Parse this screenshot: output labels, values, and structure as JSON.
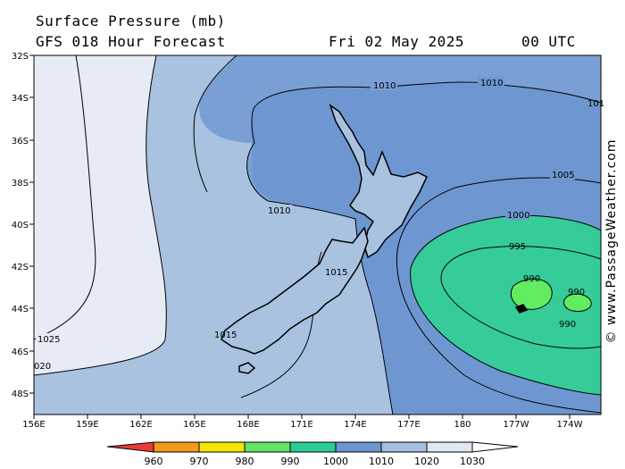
{
  "header": {
    "title": "Surface Pressure (mb)",
    "subtitle": "GFS 018 Hour Forecast",
    "date": "Fri 02 May 2025",
    "time": "00 UTC"
  },
  "credit": "© www.PassageWeather.com",
  "axes": {
    "lat_labels": [
      "32S",
      "34S",
      "36S",
      "38S",
      "40S",
      "42S",
      "44S",
      "46S",
      "48S"
    ],
    "lon_labels": [
      "156E",
      "159E",
      "162E",
      "165E",
      "168E",
      "171E",
      "174E",
      "177E",
      "180",
      "177W",
      "174W"
    ]
  },
  "contour_labels": [
    "1010",
    "1010",
    "101",
    "1005",
    "1010",
    "1000",
    "995",
    "990",
    "990",
    "990",
    "1015",
    "1015",
    "1025",
    "020"
  ],
  "colorbar": {
    "labels": [
      "960",
      "970",
      "980",
      "990",
      "1000",
      "1010",
      "1020",
      "1030"
    ],
    "colors": [
      "#e83a3a",
      "#f29a1a",
      "#f4e600",
      "#64e464",
      "#2ccc96",
      "#6c96d0",
      "#a6bedf",
      "#dfe7f3"
    ]
  },
  "colors": {
    "band_1025": "#e6ebf5",
    "band_1015": "#a8c2e0",
    "band_1010": "#7a9fd4",
    "band_1005": "#6e97d2",
    "band_995": "#36cc9a",
    "band_990": "#62ec62"
  }
}
